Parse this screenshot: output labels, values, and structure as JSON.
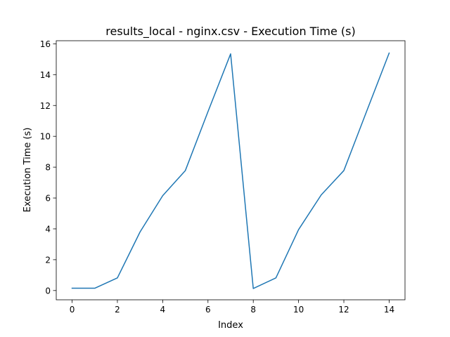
{
  "chart_data": {
    "type": "line",
    "title": "results_local - nginx.csv - Execution Time (s)",
    "xlabel": "Index",
    "ylabel": "Execution Time (s)",
    "x": [
      0,
      1,
      2,
      3,
      4,
      5,
      6,
      7,
      8,
      9,
      10,
      11,
      12,
      13,
      14
    ],
    "series": [
      {
        "values": [
          0.15,
          0.15,
          0.82,
          3.8,
          6.15,
          7.78,
          11.6,
          15.35,
          0.13,
          0.82,
          3.95,
          6.2,
          7.78,
          11.6,
          15.4
        ],
        "color": "#1f77b4"
      }
    ],
    "xlim": [
      -0.7,
      14.7
    ],
    "ylim": [
      -0.6,
      16.2
    ],
    "xticks": [
      0,
      2,
      4,
      6,
      8,
      10,
      12,
      14
    ],
    "yticks": [
      0,
      2,
      4,
      6,
      8,
      10,
      12,
      14,
      16
    ],
    "grid": false,
    "legend": "none"
  }
}
